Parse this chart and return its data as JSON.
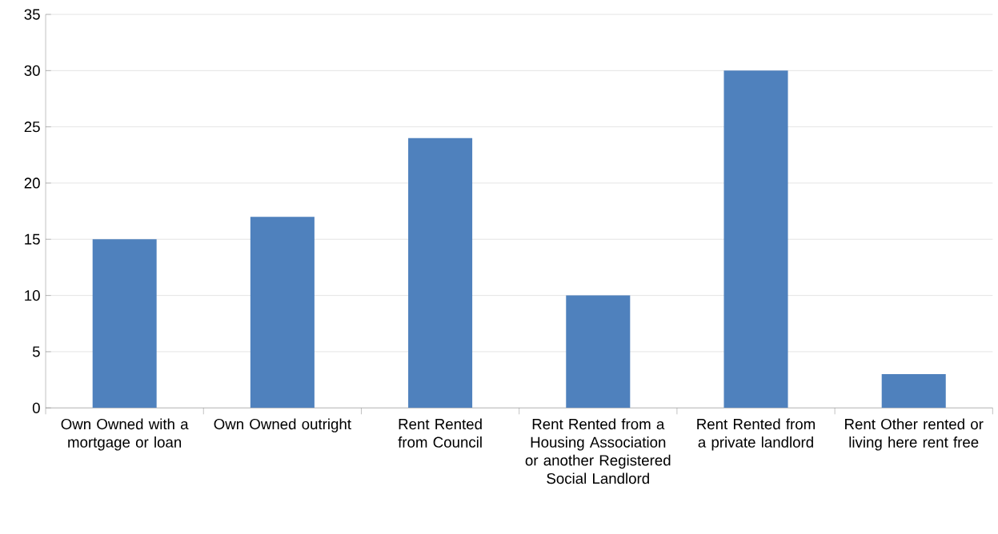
{
  "chart_data": {
    "type": "bar",
    "categories": [
      "Own Owned with a mortgage or loan",
      "Own Owned outright",
      "Rent Rented from Council",
      "Rent Rented from a Housing Association or another Registered Social Landlord",
      "Rent Rented from a private landlord",
      "Rent Other rented or living here rent free"
    ],
    "values": [
      15,
      17,
      24,
      10,
      30,
      3
    ],
    "color": "#4f81bd",
    "ylim": [
      0,
      35
    ],
    "yticks": [
      0,
      5,
      10,
      15,
      20,
      25,
      30,
      35
    ],
    "grid": "y"
  }
}
